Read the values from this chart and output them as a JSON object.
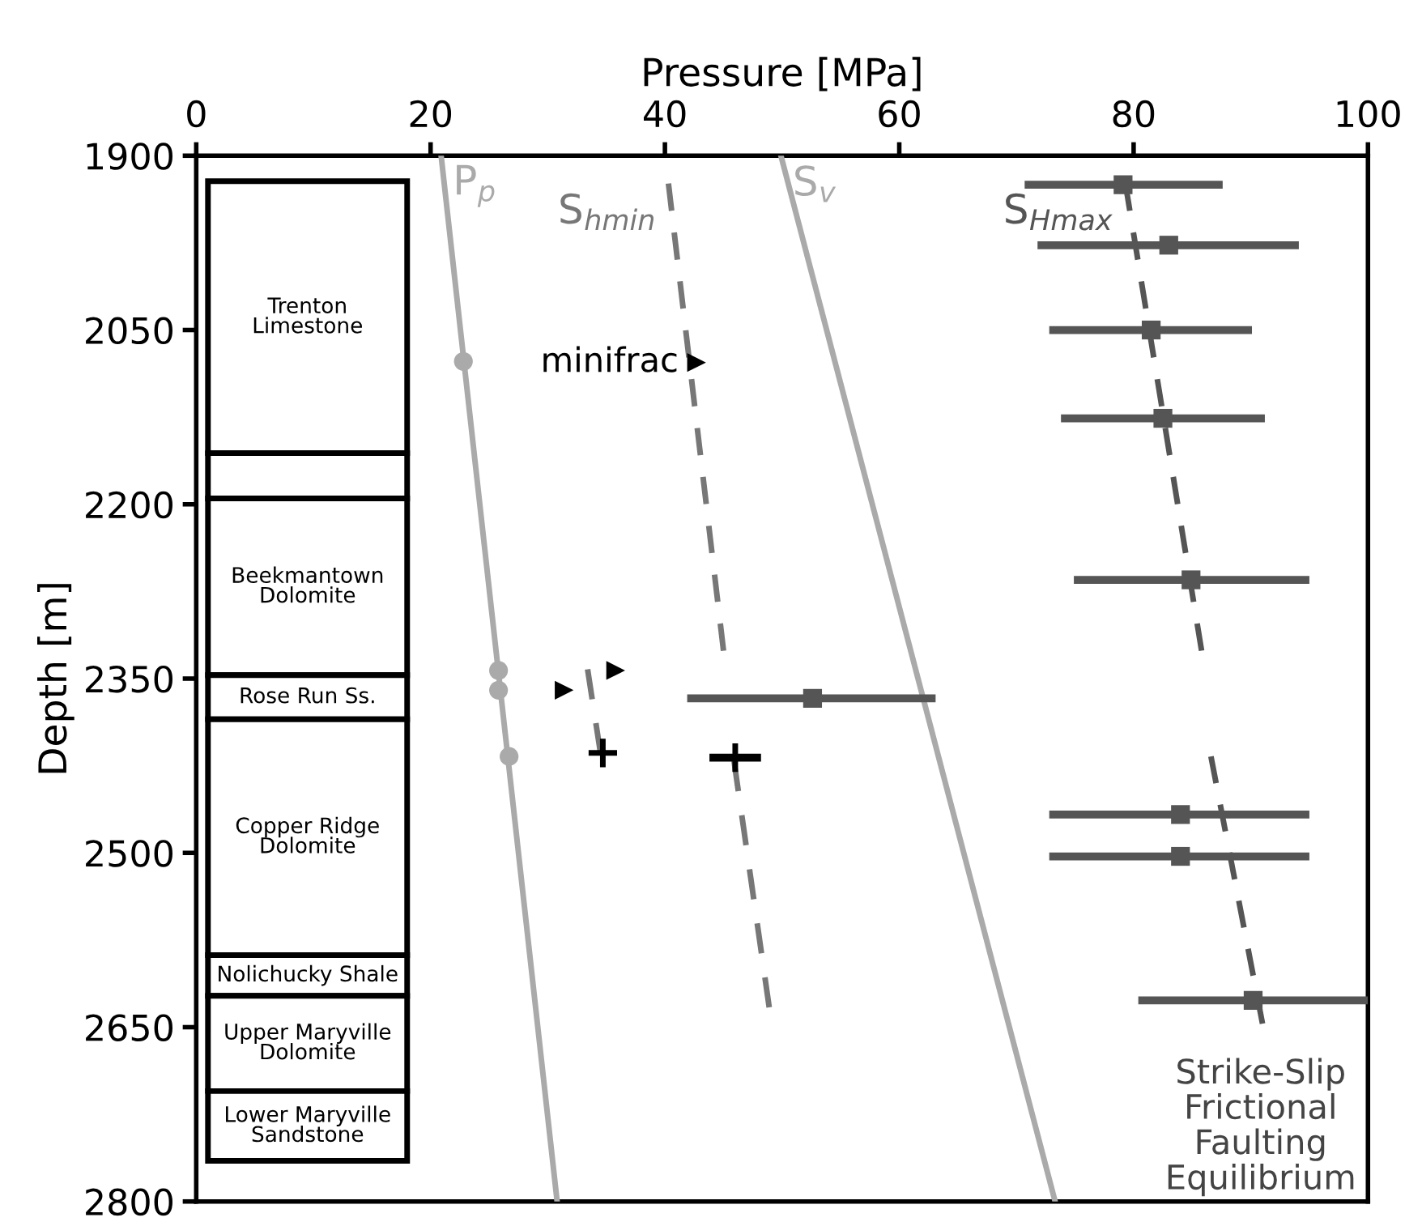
{
  "chart_data": {
    "type": "line",
    "xlabel": "Pressure [MPa]",
    "ylabel": "Depth [m]",
    "xlim": [
      0,
      100
    ],
    "xticks": [
      0,
      20,
      40,
      60,
      80,
      100
    ],
    "ylim": [
      2800,
      1900
    ],
    "yticks": [
      1900,
      2050,
      2200,
      2350,
      2500,
      2650,
      2800
    ],
    "grid": false,
    "series": [
      {
        "name": "P$_{p}$",
        "color": "#aaaaaa",
        "line_style": "solid",
        "x": [
          20.9,
          30.8
        ],
        "values": [
          1900,
          2800
        ]
      },
      {
        "name": "S$_{hmin}$",
        "color": "#777777",
        "line_style": "dashed",
        "x": [
          40.3,
          45.0,
          null,
          33.4,
          34.5,
          null,
          45.9,
          48.9
        ],
        "values": [
          1924,
          2326,
          null,
          2342,
          2414,
          null,
          2421,
          2633
        ]
      },
      {
        "name": "S$_{v}$",
        "color": "#aaaaaa",
        "line_style": "solid",
        "x": [
          49.9,
          73.3
        ],
        "values": [
          1900,
          2800
        ]
      },
      {
        "name": "S$_{Hmax}$",
        "color": "#555555",
        "line_style": "dashed",
        "x": [
          79.3,
          85.8,
          null,
          86.6,
          91.0
        ],
        "values": [
          1924,
          2326,
          null,
          2417,
          2647
        ]
      },
      {
        "type": "scatter",
        "color": "#aaaaaa",
        "marker": "circle",
        "x": [
          22.8,
          25.8,
          25.8,
          26.7
        ],
        "values": [
          2077,
          2343,
          2360,
          2417
        ]
      },
      {
        "type": "scatter",
        "color": "#555555",
        "marker": "square",
        "x": [
          79.1,
          83.0,
          81.5,
          82.5,
          84.9,
          52.6,
          84.0,
          84.0,
          90.2
        ],
        "values": [
          1925,
          1977,
          2050,
          2126,
          2265,
          2367,
          2467,
          2503,
          2627
        ],
        "xerrors": [
          [
            70.7,
            87.6
          ],
          [
            71.8,
            94.1
          ],
          [
            72.8,
            90.1
          ],
          [
            73.8,
            91.2
          ],
          [
            74.9,
            95.0
          ],
          [
            41.9,
            63.1
          ],
          [
            72.8,
            95.0
          ],
          [
            72.8,
            95.0
          ],
          [
            80.4,
            100
          ]
        ]
      },
      {
        "type": "scatter",
        "color": "#000000",
        "marker": "triangle",
        "x": [
          42.7,
          35.8,
          31.4
        ],
        "values": [
          2078,
          2343,
          2360
        ]
      },
      {
        "type": "scatter",
        "color": "#000000",
        "marker": "cross",
        "x": [
          34.7,
          46.0
        ],
        "values": [
          2414,
          2418
        ],
        "xerrors": [
          null,
          [
            43.8,
            48.2
          ]
        ]
      }
    ],
    "bands": [
      {
        "axis": "y",
        "from": 1922,
        "to": 2156,
        "label": "Trenton\nLimestone",
        "color": "#ffffff"
      },
      {
        "axis": "y",
        "from": 2156,
        "to": 2195,
        "color": "#ffffff"
      },
      {
        "axis": "y",
        "from": 2195,
        "to": 2347,
        "label": "Beekmantown\nDolomite",
        "color": "#ffffff"
      },
      {
        "axis": "y",
        "from": 2347,
        "to": 2385,
        "label": "Rose Run Ss.",
        "color": "#ffffff"
      },
      {
        "axis": "y",
        "from": 2385,
        "to": 2588,
        "label": "Copper Ridge\nDolomite",
        "color": "#ffffff"
      },
      {
        "axis": "y",
        "from": 2588,
        "to": 2623,
        "label": "Nolichucky Shale",
        "color": "#ffffff"
      },
      {
        "axis": "y",
        "from": 2623,
        "to": 2705,
        "label": "Upper Maryville\nDolomite",
        "color": "#ffffff"
      },
      {
        "axis": "y",
        "from": 2705,
        "to": 2765,
        "label": "Lower Maryville\nSandstone",
        "color": "#ffffff"
      }
    ],
    "annotations": [
      {
        "text": "minifrac",
        "x": 42.7,
        "y": 2078
      },
      "Strike-Slip\nFrictional\nFaulting\nEquilibrium"
    ]
  }
}
